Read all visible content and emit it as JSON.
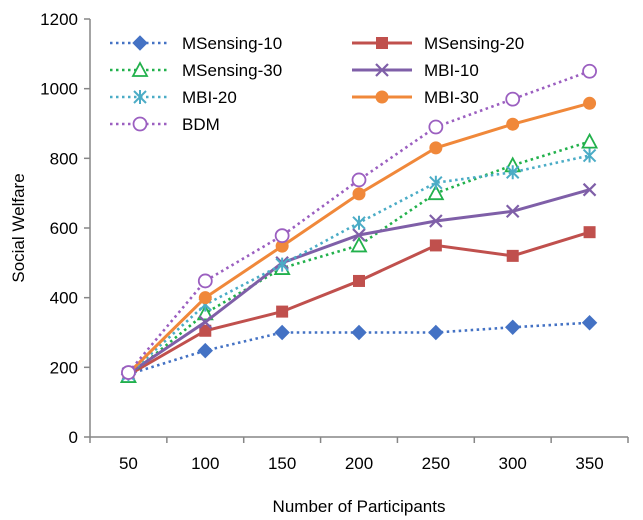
{
  "chart_data": {
    "type": "line",
    "title": "",
    "xlabel": "Number of Participants",
    "ylabel": "Social Welfare",
    "ylim": [
      0,
      1200
    ],
    "yticks": [
      0,
      200,
      400,
      600,
      800,
      1000,
      1200
    ],
    "x": [
      50,
      100,
      150,
      200,
      250,
      300,
      350
    ],
    "grid": false,
    "legend_position": "top-left",
    "series": [
      {
        "name": "MSensing-10",
        "color": "#4472C4",
        "dash": "dotted",
        "marker": "diamond",
        "values": [
          180,
          248,
          300,
          300,
          300,
          315,
          328
        ]
      },
      {
        "name": "MSensing-20",
        "color": "#C0504D",
        "dash": "solid",
        "marker": "square",
        "values": [
          178,
          305,
          360,
          448,
          550,
          520,
          588
        ]
      },
      {
        "name": "MSensing-30",
        "color": "#22B14C",
        "dash": "dotted",
        "marker": "triangle",
        "values": [
          175,
          355,
          485,
          550,
          700,
          780,
          848
        ]
      },
      {
        "name": "MBI-10",
        "color": "#7F5FA8",
        "dash": "solid",
        "marker": "x",
        "values": [
          182,
          330,
          500,
          580,
          620,
          648,
          710
        ]
      },
      {
        "name": "MBI-20",
        "color": "#4BACC6",
        "dash": "dotted",
        "marker": "star",
        "values": [
          180,
          380,
          495,
          615,
          730,
          760,
          808
        ]
      },
      {
        "name": "MBI-30",
        "color": "#F0883A",
        "dash": "solid",
        "marker": "circle",
        "values": [
          183,
          400,
          548,
          698,
          830,
          898,
          958
        ]
      },
      {
        "name": "BDM",
        "color": "#9B5FC0",
        "dash": "dotted",
        "marker": "open-circle",
        "values": [
          185,
          448,
          578,
          738,
          890,
          970,
          1050
        ]
      }
    ]
  }
}
